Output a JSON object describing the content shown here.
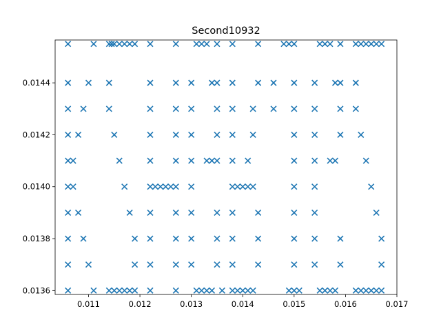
{
  "chart_data": {
    "type": "scatter",
    "title": "Second10932",
    "xlabel": "",
    "ylabel": "",
    "xlim": [
      0.01035,
      0.017
    ],
    "ylim": [
      0.013585,
      0.014565
    ],
    "xticks": [
      {
        "value": 0.011,
        "label": "0.011"
      },
      {
        "value": 0.012,
        "label": "0.012"
      },
      {
        "value": 0.013,
        "label": "0.013"
      },
      {
        "value": 0.014,
        "label": "0.014"
      },
      {
        "value": 0.015,
        "label": "0.015"
      },
      {
        "value": 0.016,
        "label": "0.016"
      },
      {
        "value": 0.017,
        "label": "0.017"
      }
    ],
    "yticks": [
      {
        "value": 0.0136,
        "label": "0.0136"
      },
      {
        "value": 0.0138,
        "label": "0.0138"
      },
      {
        "value": 0.014,
        "label": "0.0140"
      },
      {
        "value": 0.0142,
        "label": "0.0142"
      },
      {
        "value": 0.0144,
        "label": "0.0144"
      }
    ],
    "marker": "x",
    "color": "#1f77b4",
    "grid": false,
    "rows": [
      {
        "y": 0.01455,
        "x": [
          0.0106,
          0.0111,
          0.0114,
          0.01145,
          0.0115,
          0.0116,
          0.0117,
          0.0118,
          0.0119,
          0.0122,
          0.0127,
          0.0131,
          0.0132,
          0.0133,
          0.0135,
          0.0138,
          0.0143,
          0.0148,
          0.0149,
          0.015,
          0.0155,
          0.0156,
          0.0157,
          0.0159,
          0.0162,
          0.0163,
          0.0164,
          0.0165,
          0.0166,
          0.0167
        ]
      },
      {
        "y": 0.0144,
        "x": [
          0.0106,
          0.011,
          0.0114,
          0.0122,
          0.0127,
          0.013,
          0.0134,
          0.0135,
          0.0138,
          0.0143,
          0.0146,
          0.015,
          0.0154,
          0.0158,
          0.0159,
          0.0162
        ]
      },
      {
        "y": 0.0143,
        "x": [
          0.0106,
          0.0109,
          0.0114,
          0.0122,
          0.0127,
          0.013,
          0.0135,
          0.0138,
          0.0142,
          0.0146,
          0.015,
          0.0154,
          0.0159,
          0.0162
        ]
      },
      {
        "y": 0.0142,
        "x": [
          0.0106,
          0.0108,
          0.0115,
          0.0122,
          0.0127,
          0.013,
          0.0135,
          0.0138,
          0.0142,
          0.015,
          0.0154,
          0.0159,
          0.0163
        ]
      },
      {
        "y": 0.0141,
        "x": [
          0.0106,
          0.0107,
          0.0116,
          0.0122,
          0.0127,
          0.013,
          0.0133,
          0.0134,
          0.0135,
          0.0138,
          0.0141,
          0.015,
          0.0154,
          0.0157,
          0.0158,
          0.0164
        ]
      },
      {
        "y": 0.014,
        "x": [
          0.0106,
          0.0107,
          0.0117,
          0.0122,
          0.0123,
          0.0124,
          0.0125,
          0.0126,
          0.0127,
          0.013,
          0.0138,
          0.0139,
          0.014,
          0.0141,
          0.0142,
          0.015,
          0.0154,
          0.0165
        ]
      },
      {
        "y": 0.0139,
        "x": [
          0.0106,
          0.0108,
          0.0118,
          0.0122,
          0.0127,
          0.013,
          0.0135,
          0.0138,
          0.0143,
          0.015,
          0.0154,
          0.0166
        ]
      },
      {
        "y": 0.0138,
        "x": [
          0.0106,
          0.0109,
          0.0119,
          0.0122,
          0.0127,
          0.013,
          0.0135,
          0.0138,
          0.0143,
          0.015,
          0.0154,
          0.0159,
          0.0167
        ]
      },
      {
        "y": 0.0137,
        "x": [
          0.0106,
          0.011,
          0.0119,
          0.0122,
          0.0127,
          0.013,
          0.0135,
          0.0138,
          0.0143,
          0.015,
          0.0154,
          0.0159,
          0.0167
        ]
      },
      {
        "y": 0.0136,
        "x": [
          0.0106,
          0.0111,
          0.0114,
          0.0115,
          0.0116,
          0.0117,
          0.0118,
          0.0119,
          0.0122,
          0.0127,
          0.0131,
          0.0132,
          0.0133,
          0.0134,
          0.0136,
          0.0138,
          0.0139,
          0.014,
          0.0141,
          0.0142,
          0.0149,
          0.015,
          0.0151,
          0.0155,
          0.0156,
          0.0157,
          0.0158,
          0.0162,
          0.0163,
          0.0164,
          0.0165,
          0.0166,
          0.0167
        ]
      }
    ]
  }
}
